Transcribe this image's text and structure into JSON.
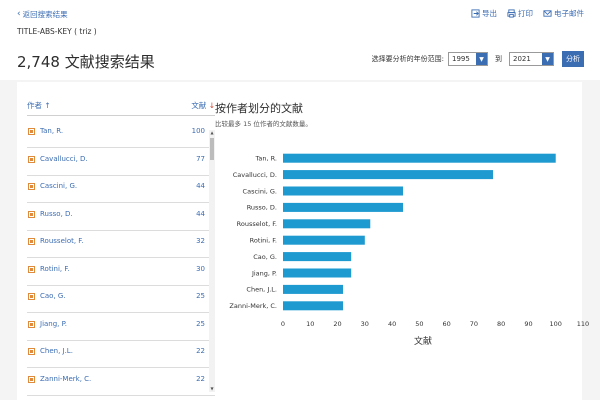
{
  "header": {
    "back_label": "返回搜索结果",
    "query": "TITLE-ABS-KEY ( triz )",
    "results_title": "2,748 文献搜索结果",
    "actions": [
      {
        "label": "导出",
        "icon": "export-icon"
      },
      {
        "label": "打印",
        "icon": "print-icon"
      },
      {
        "label": "电子邮件",
        "icon": "email-icon"
      }
    ]
  },
  "range": {
    "label": "选择要分析的年份范围:",
    "from": "1995",
    "to_label": "到",
    "to": "2021",
    "analyze_label": "分析"
  },
  "list": {
    "author_header": "作者 ↑",
    "count_header": "文献",
    "count_arrow": "↓",
    "rows": [
      {
        "name": "Tan, R.",
        "count": "100"
      },
      {
        "name": "Cavallucci, D.",
        "count": "77"
      },
      {
        "name": "Cascini, G.",
        "count": "44"
      },
      {
        "name": "Russo, D.",
        "count": "44"
      },
      {
        "name": "Rousselot, F.",
        "count": "32"
      },
      {
        "name": "Rotini, F.",
        "count": "30"
      },
      {
        "name": "Cao, G.",
        "count": "25"
      },
      {
        "name": "Jiang, P.",
        "count": "25"
      },
      {
        "name": "Chen, J.L.",
        "count": "22"
      },
      {
        "name": "Zanni-Merk, C.",
        "count": "22"
      }
    ]
  },
  "chart_data": {
    "type": "bar",
    "orientation": "horizontal",
    "title": "按作者划分的文献",
    "subtitle": "比较最多 15 位作者的文献数量。",
    "categories": [
      "Tan, R.",
      "Cavallucci, D.",
      "Cascini, G.",
      "Russo, D.",
      "Rousselot, F.",
      "Rotini, F.",
      "Cao, G.",
      "Jiang, P.",
      "Chen, J.L.",
      "Zanni-Merk, C."
    ],
    "values": [
      100,
      77,
      44,
      44,
      32,
      30,
      25,
      25,
      22,
      22
    ],
    "xlabel": "文献",
    "ylabel": "",
    "xlim": [
      0,
      110
    ],
    "xticks": [
      0,
      10,
      20,
      30,
      40,
      50,
      60,
      70,
      80,
      90,
      100,
      110
    ],
    "bar_color": "#1f9ad1",
    "grid": false
  },
  "colors": {
    "accent": "#3b6db3",
    "bar": "#1f9ad1",
    "checkbox": "#e08a3c",
    "sort_arrow": "#d0402b"
  }
}
